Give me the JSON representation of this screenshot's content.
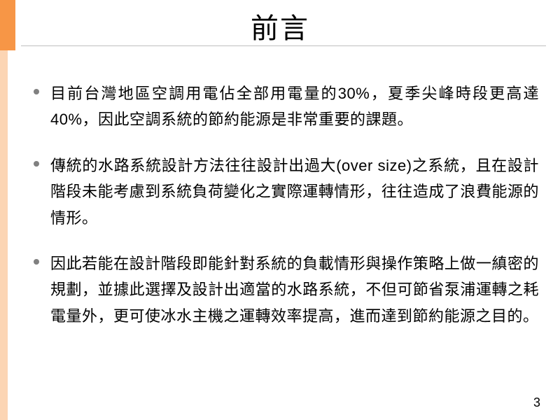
{
  "slide": {
    "title": "前言",
    "bullets": [
      "目前台灣地區空調用電佔全部用電量的30%，夏季尖峰時段更高達40%，因此空調系統的節約能源是非常重要的課題。",
      "傳統的水路系統設計方法往往設計出過大(over size)之系統，且在設計階段未能考慮到系統負荷變化之實際運轉情形，往往造成了浪費能源的情形。",
      "因此若能在設計階段即能針對系統的負載情形與操作策略上做一縝密的規劃，並據此選擇及設計出適當的水路系統，不但可節省泵浦運轉之耗電量外，更可使冰水主機之運轉效率提高，進而達到節約能源之目的。"
    ],
    "page_number": "3"
  },
  "style": {
    "accent_color_top": "#f79646",
    "accent_color_bottom": "#fcd5b4",
    "bullet_color": "#808080",
    "text_color": "#000000",
    "underline_color": "#bfbfbf",
    "title_fontsize": 40,
    "body_fontsize": 22,
    "page_number_fontsize": 18,
    "background_color": "#ffffff"
  }
}
